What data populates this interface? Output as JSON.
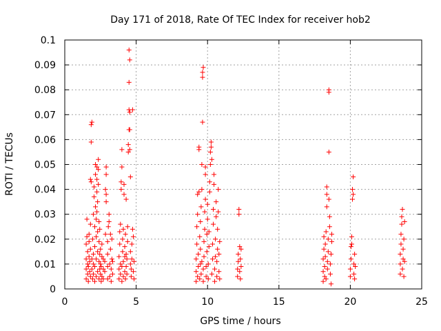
{
  "chart_data": {
    "type": "scatter",
    "title": "Day 171 of 2018, Rate Of TEC Index for receiver hob2",
    "xlabel": "GPS time / hours",
    "ylabel": "ROTI / TECUs",
    "xlim": [
      0,
      25
    ],
    "ylim": [
      0,
      0.1
    ],
    "x_ticks": [
      0,
      5,
      10,
      15,
      20,
      25
    ],
    "y_ticks": [
      0,
      0.01,
      0.02,
      0.03,
      0.04,
      0.05,
      0.06,
      0.07,
      0.08,
      0.09,
      0.1
    ],
    "x_tick_labels": [
      "0",
      "5",
      "10",
      "15",
      "20",
      "25"
    ],
    "y_tick_labels": [
      "0",
      "0.01",
      "0.02",
      "0.03",
      "0.04",
      "0.05",
      "0.06",
      "0.07",
      "0.08",
      "0.09",
      "0.1"
    ],
    "grid": true,
    "legend": "none",
    "marker": "plus",
    "series": [
      {
        "color": "#ff0000",
        "points": [
          [
            1.5,
            0.004
          ],
          [
            1.5,
            0.008
          ],
          [
            1.5,
            0.012
          ],
          [
            1.5,
            0.018
          ],
          [
            1.55,
            0.021
          ],
          [
            1.55,
            0.028
          ],
          [
            1.6,
            0.006
          ],
          [
            1.6,
            0.01
          ],
          [
            1.6,
            0.015
          ],
          [
            1.65,
            0.003
          ],
          [
            1.65,
            0.009
          ],
          [
            1.7,
            0.013
          ],
          [
            1.7,
            0.019
          ],
          [
            1.7,
            0.022
          ],
          [
            1.75,
            0.007
          ],
          [
            1.75,
            0.011
          ],
          [
            1.8,
            0.005
          ],
          [
            1.8,
            0.016
          ],
          [
            1.8,
            0.026
          ],
          [
            1.8,
            0.044
          ],
          [
            1.85,
            0.043
          ],
          [
            1.85,
            0.059
          ],
          [
            1.85,
            0.066
          ],
          [
            1.9,
            0.067
          ],
          [
            1.9,
            0.008
          ],
          [
            1.9,
            0.012
          ],
          [
            1.95,
            0.004
          ],
          [
            1.95,
            0.02
          ],
          [
            2.0,
            0.006
          ],
          [
            2.0,
            0.01
          ],
          [
            2.0,
            0.014
          ],
          [
            2.0,
            0.03
          ],
          [
            2.05,
            0.037
          ],
          [
            2.05,
            0.041
          ],
          [
            2.1,
            0.003
          ],
          [
            2.1,
            0.009
          ],
          [
            2.1,
            0.017
          ],
          [
            2.1,
            0.025
          ],
          [
            2.15,
            0.046
          ],
          [
            2.15,
            0.05
          ],
          [
            2.15,
            0.033
          ],
          [
            2.2,
            0.005
          ],
          [
            2.2,
            0.012
          ],
          [
            2.2,
            0.021
          ],
          [
            2.2,
            0.028
          ],
          [
            2.25,
            0.049
          ],
          [
            2.25,
            0.044
          ],
          [
            2.25,
            0.039
          ],
          [
            2.25,
            0.031
          ],
          [
            2.3,
            0.007
          ],
          [
            2.3,
            0.015
          ],
          [
            2.3,
            0.023
          ],
          [
            2.3,
            0.035
          ],
          [
            2.35,
            0.052
          ],
          [
            2.35,
            0.048
          ],
          [
            2.35,
            0.042
          ],
          [
            2.4,
            0.004
          ],
          [
            2.4,
            0.011
          ],
          [
            2.4,
            0.019
          ],
          [
            2.4,
            0.027
          ],
          [
            2.45,
            0.008
          ],
          [
            2.45,
            0.014
          ],
          [
            2.45,
            0.024
          ],
          [
            2.5,
            0.006
          ],
          [
            2.5,
            0.01
          ],
          [
            2.5,
            0.016
          ],
          [
            2.55,
            0.003
          ],
          [
            2.55,
            0.009
          ],
          [
            2.6,
            0.005
          ],
          [
            2.6,
            0.013
          ],
          [
            2.6,
            0.018
          ],
          [
            2.7,
            0.004
          ],
          [
            2.7,
            0.008
          ],
          [
            2.7,
            0.012
          ],
          [
            2.8,
            0.007
          ],
          [
            2.8,
            0.011
          ],
          [
            2.85,
            0.022
          ],
          [
            2.85,
            0.04
          ],
          [
            2.9,
            0.046
          ],
          [
            2.9,
            0.049
          ],
          [
            2.9,
            0.038
          ],
          [
            2.9,
            0.035
          ],
          [
            3.0,
            0.004
          ],
          [
            3.0,
            0.009
          ],
          [
            3.0,
            0.014
          ],
          [
            3.0,
            0.019
          ],
          [
            3.05,
            0.025
          ],
          [
            3.1,
            0.03
          ],
          [
            3.1,
            0.027
          ],
          [
            3.15,
            0.005
          ],
          [
            3.15,
            0.01
          ],
          [
            3.2,
            0.016
          ],
          [
            3.2,
            0.022
          ],
          [
            3.25,
            0.003
          ],
          [
            3.25,
            0.008
          ],
          [
            3.3,
            0.012
          ],
          [
            3.3,
            0.02
          ],
          [
            3.35,
            0.006
          ],
          [
            3.35,
            0.011
          ],
          [
            3.8,
            0.004
          ],
          [
            3.8,
            0.008
          ],
          [
            3.8,
            0.013
          ],
          [
            3.85,
            0.018
          ],
          [
            3.85,
            0.023
          ],
          [
            3.9,
            0.026
          ],
          [
            3.9,
            0.006
          ],
          [
            3.9,
            0.01
          ],
          [
            3.95,
            0.04
          ],
          [
            3.95,
            0.043
          ],
          [
            4.0,
            0.049
          ],
          [
            4.0,
            0.056
          ],
          [
            4.0,
            0.003
          ],
          [
            4.0,
            0.009
          ],
          [
            4.05,
            0.015
          ],
          [
            4.05,
            0.02
          ],
          [
            4.1,
            0.024
          ],
          [
            4.1,
            0.005
          ],
          [
            4.1,
            0.011
          ],
          [
            4.15,
            0.038
          ],
          [
            4.15,
            0.042
          ],
          [
            4.2,
            0.007
          ],
          [
            4.2,
            0.013
          ],
          [
            4.2,
            0.017
          ],
          [
            4.25,
            0.022
          ],
          [
            4.25,
            0.004
          ],
          [
            4.3,
            0.009
          ],
          [
            4.3,
            0.014
          ],
          [
            4.3,
            0.036
          ],
          [
            4.35,
            0.006
          ],
          [
            4.35,
            0.012
          ],
          [
            4.4,
            0.019
          ],
          [
            4.4,
            0.025
          ],
          [
            4.45,
            0.055
          ],
          [
            4.45,
            0.058
          ],
          [
            4.5,
            0.064
          ],
          [
            4.5,
            0.072
          ],
          [
            4.5,
            0.083
          ],
          [
            4.5,
            0.096
          ],
          [
            4.55,
            0.092
          ],
          [
            4.55,
            0.071
          ],
          [
            4.55,
            0.064
          ],
          [
            4.55,
            0.056
          ],
          [
            4.6,
            0.045
          ],
          [
            4.6,
            0.01
          ],
          [
            4.6,
            0.015
          ],
          [
            4.65,
            0.005
          ],
          [
            4.65,
            0.008
          ],
          [
            4.7,
            0.012
          ],
          [
            4.7,
            0.018
          ],
          [
            4.75,
            0.072
          ],
          [
            4.75,
            0.024
          ],
          [
            4.8,
            0.021
          ],
          [
            4.8,
            0.007
          ],
          [
            4.85,
            0.011
          ],
          [
            4.85,
            0.004
          ],
          [
            9.2,
            0.003
          ],
          [
            9.2,
            0.007
          ],
          [
            9.2,
            0.012
          ],
          [
            9.25,
            0.018
          ],
          [
            9.25,
            0.025
          ],
          [
            9.3,
            0.03
          ],
          [
            9.3,
            0.038
          ],
          [
            9.3,
            0.005
          ],
          [
            9.35,
            0.009
          ],
          [
            9.35,
            0.014
          ],
          [
            9.4,
            0.039
          ],
          [
            9.4,
            0.056
          ],
          [
            9.4,
            0.057
          ],
          [
            9.45,
            0.021
          ],
          [
            9.45,
            0.004
          ],
          [
            9.5,
            0.01
          ],
          [
            9.5,
            0.016
          ],
          [
            9.5,
            0.027
          ],
          [
            9.55,
            0.033
          ],
          [
            9.55,
            0.006
          ],
          [
            9.6,
            0.04
          ],
          [
            9.6,
            0.05
          ],
          [
            9.6,
            0.011
          ],
          [
            9.65,
            0.067
          ],
          [
            9.65,
            0.085
          ],
          [
            9.65,
            0.087
          ],
          [
            9.7,
            0.089
          ],
          [
            9.7,
            0.003
          ],
          [
            9.7,
            0.008
          ],
          [
            9.75,
            0.013
          ],
          [
            9.75,
            0.019
          ],
          [
            9.8,
            0.024
          ],
          [
            9.8,
            0.031
          ],
          [
            9.85,
            0.036
          ],
          [
            9.85,
            0.046
          ],
          [
            9.85,
            0.049
          ],
          [
            9.9,
            0.005
          ],
          [
            9.9,
            0.009
          ],
          [
            9.95,
            0.015
          ],
          [
            9.95,
            0.022
          ],
          [
            10.0,
            0.028
          ],
          [
            10.0,
            0.034
          ],
          [
            10.05,
            0.004
          ],
          [
            10.05,
            0.01
          ],
          [
            10.1,
            0.017
          ],
          [
            10.1,
            0.023
          ],
          [
            10.15,
            0.039
          ],
          [
            10.15,
            0.043
          ],
          [
            10.2,
            0.05
          ],
          [
            10.2,
            0.055
          ],
          [
            10.25,
            0.059
          ],
          [
            10.25,
            0.057
          ],
          [
            10.3,
            0.052
          ],
          [
            10.3,
            0.006
          ],
          [
            10.35,
            0.012
          ],
          [
            10.35,
            0.018
          ],
          [
            10.4,
            0.026
          ],
          [
            10.4,
            0.032
          ],
          [
            10.45,
            0.042
          ],
          [
            10.45,
            0.046
          ],
          [
            10.5,
            0.003
          ],
          [
            10.5,
            0.008
          ],
          [
            10.55,
            0.013
          ],
          [
            10.55,
            0.02
          ],
          [
            10.6,
            0.029
          ],
          [
            10.6,
            0.035
          ],
          [
            10.65,
            0.005
          ],
          [
            10.65,
            0.011
          ],
          [
            10.7,
            0.016
          ],
          [
            10.7,
            0.024
          ],
          [
            10.75,
            0.04
          ],
          [
            10.75,
            0.031
          ],
          [
            10.8,
            0.007
          ],
          [
            10.8,
            0.014
          ],
          [
            10.85,
            0.019
          ],
          [
            10.85,
            0.004
          ],
          [
            12.1,
            0.005
          ],
          [
            12.1,
            0.008
          ],
          [
            12.15,
            0.011
          ],
          [
            12.15,
            0.014
          ],
          [
            12.2,
            0.03
          ],
          [
            12.2,
            0.032
          ],
          [
            12.25,
            0.017
          ],
          [
            12.25,
            0.007
          ],
          [
            12.3,
            0.004
          ],
          [
            12.3,
            0.012
          ],
          [
            12.35,
            0.009
          ],
          [
            12.35,
            0.016
          ],
          [
            18.1,
            0.003
          ],
          [
            18.1,
            0.007
          ],
          [
            18.1,
            0.012
          ],
          [
            18.15,
            0.016
          ],
          [
            18.15,
            0.021
          ],
          [
            18.2,
            0.005
          ],
          [
            18.2,
            0.009
          ],
          [
            18.25,
            0.013
          ],
          [
            18.25,
            0.018
          ],
          [
            18.3,
            0.023
          ],
          [
            18.3,
            0.004
          ],
          [
            18.35,
            0.033
          ],
          [
            18.35,
            0.041
          ],
          [
            18.35,
            0.038
          ],
          [
            18.4,
            0.008
          ],
          [
            18.4,
            0.011
          ],
          [
            18.45,
            0.015
          ],
          [
            18.45,
            0.02
          ],
          [
            18.5,
            0.08
          ],
          [
            18.5,
            0.079
          ],
          [
            18.5,
            0.055
          ],
          [
            18.5,
            0.036
          ],
          [
            18.55,
            0.029
          ],
          [
            18.55,
            0.025
          ],
          [
            18.6,
            0.006
          ],
          [
            18.6,
            0.01
          ],
          [
            18.65,
            0.014
          ],
          [
            18.65,
            0.002
          ],
          [
            18.7,
            0.019
          ],
          [
            18.7,
            0.022
          ],
          [
            20.0,
            0.005
          ],
          [
            20.0,
            0.008
          ],
          [
            20.05,
            0.012
          ],
          [
            20.05,
            0.017
          ],
          [
            20.1,
            0.021
          ],
          [
            20.1,
            0.018
          ],
          [
            20.15,
            0.036
          ],
          [
            20.15,
            0.04
          ],
          [
            20.2,
            0.045
          ],
          [
            20.2,
            0.038
          ],
          [
            20.25,
            0.006
          ],
          [
            20.25,
            0.01
          ],
          [
            20.3,
            0.014
          ],
          [
            20.3,
            0.004
          ],
          [
            20.35,
            0.009
          ],
          [
            23.5,
            0.006
          ],
          [
            23.5,
            0.01
          ],
          [
            23.5,
            0.014
          ],
          [
            23.55,
            0.018
          ],
          [
            23.55,
            0.022
          ],
          [
            23.6,
            0.026
          ],
          [
            23.6,
            0.029
          ],
          [
            23.65,
            0.032
          ],
          [
            23.65,
            0.008
          ],
          [
            23.7,
            0.012
          ],
          [
            23.7,
            0.016
          ],
          [
            23.75,
            0.005
          ],
          [
            23.75,
            0.02
          ],
          [
            23.8,
            0.027
          ],
          [
            23.8,
            0.011
          ]
        ]
      }
    ]
  }
}
